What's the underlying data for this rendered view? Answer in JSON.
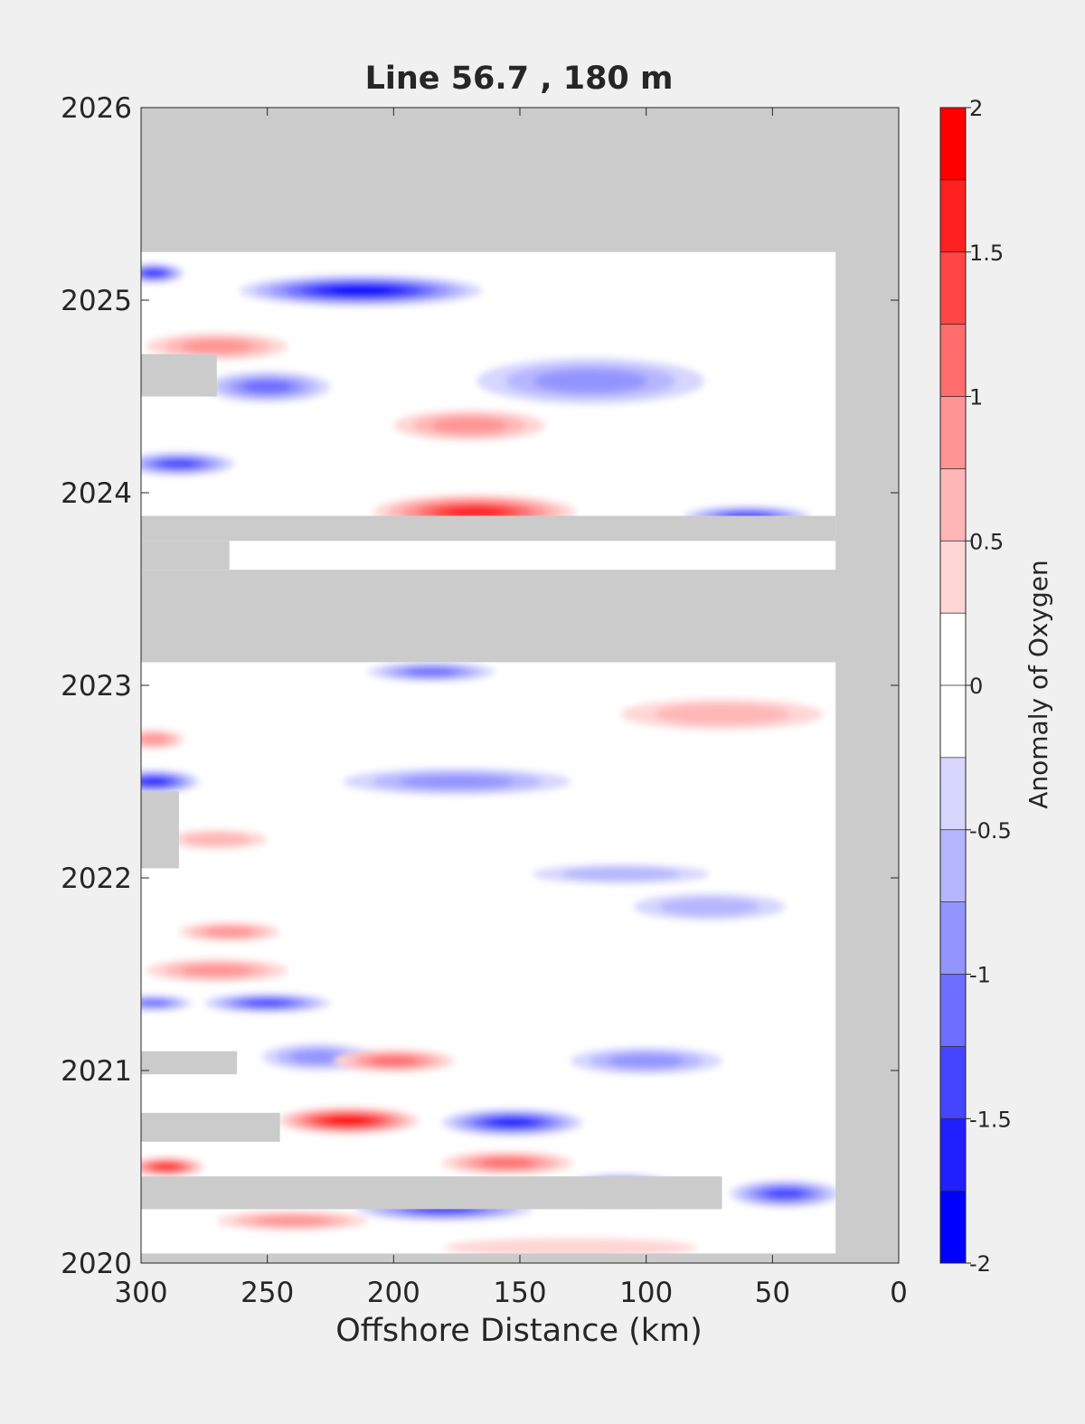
{
  "chart_data": {
    "type": "heatmap",
    "subtype": "filled-contour",
    "title": "Line 56.7 , 180 m",
    "xlabel": "Offshore Distance (km)",
    "ylabel": "",
    "xlim": [
      300,
      0
    ],
    "x_reversed": true,
    "ylim": [
      2020,
      2026
    ],
    "xticks": [
      300,
      250,
      200,
      150,
      100,
      50,
      0
    ],
    "yticks": [
      2020,
      2021,
      2022,
      2023,
      2024,
      2025,
      2026
    ],
    "grid": false,
    "colorbar": {
      "label": "Anomaly of Oxygen",
      "range": [
        -2,
        2
      ],
      "step": 0.25,
      "ticks": [
        -2,
        -1.5,
        -1,
        -0.5,
        0,
        0.5,
        1,
        1.5,
        2
      ],
      "tick_labels": [
        "-2",
        "-1.5",
        "-1",
        "-0.5",
        "0",
        "0.5",
        "1",
        "1.5",
        "2"
      ],
      "colormap": "blue-white-red",
      "colors": [
        "#0000ff",
        "#2020ff",
        "#4545ff",
        "#6d6dff",
        "#9494ff",
        "#b6b6ff",
        "#d6d6ff",
        "#ffffff",
        "#ffffff",
        "#ffd6d6",
        "#ffb6b6",
        "#ff9494",
        "#ff6d6d",
        "#ff4545",
        "#ff2020",
        "#ff0000"
      ]
    },
    "colors": {
      "nodata": "#cbcbcb",
      "figure_bg": "#f0f0f0",
      "axes_bg": "#ffffff"
    },
    "data_extent": {
      "x": [
        300,
        25
      ],
      "y": [
        2020.05,
        2025.25
      ]
    },
    "nodata_regions": [
      {
        "x": [
          300,
          0
        ],
        "y": [
          2025.25,
          2026
        ]
      },
      {
        "x": [
          25,
          0
        ],
        "y": [
          2020,
          2026
        ]
      },
      {
        "x": [
          300,
          0
        ],
        "y": [
          2023.12,
          2023.6
        ]
      },
      {
        "x": [
          300,
          25
        ],
        "y": [
          2023.75,
          2023.88
        ]
      },
      {
        "x": [
          300,
          265
        ],
        "y": [
          2023.6,
          2023.75
        ]
      },
      {
        "x": [
          300,
          270
        ],
        "y": [
          2024.5,
          2024.72
        ]
      },
      {
        "x": [
          300,
          285
        ],
        "y": [
          2022.05,
          2022.45
        ]
      },
      {
        "x": [
          300,
          262
        ],
        "y": [
          2020.98,
          2021.1
        ]
      },
      {
        "x": [
          300,
          245
        ],
        "y": [
          2020.63,
          2020.78
        ]
      },
      {
        "x": [
          300,
          70
        ],
        "y": [
          2020.28,
          2020.45
        ]
      }
    ],
    "anomaly_features": [
      {
        "x": 213,
        "y": 2025.05,
        "rx": 48,
        "ry": 0.08,
        "value": -2
      },
      {
        "x": 295,
        "y": 2025.14,
        "rx": 12,
        "ry": 0.05,
        "value": -1.75
      },
      {
        "x": 270,
        "y": 2024.76,
        "rx": 28,
        "ry": 0.07,
        "value": 1
      },
      {
        "x": 250,
        "y": 2024.55,
        "rx": 25,
        "ry": 0.08,
        "value": -1.25
      },
      {
        "x": 122,
        "y": 2024.58,
        "rx": 45,
        "ry": 0.12,
        "value": -1
      },
      {
        "x": 170,
        "y": 2024.35,
        "rx": 30,
        "ry": 0.08,
        "value": 1
      },
      {
        "x": 285,
        "y": 2024.15,
        "rx": 22,
        "ry": 0.06,
        "value": -1.5
      },
      {
        "x": 168,
        "y": 2023.9,
        "rx": 40,
        "ry": 0.09,
        "value": 1.75
      },
      {
        "x": 60,
        "y": 2023.88,
        "rx": 25,
        "ry": 0.05,
        "value": -1.5
      },
      {
        "x": 185,
        "y": 2023.07,
        "rx": 25,
        "ry": 0.05,
        "value": -1.25
      },
      {
        "x": 70,
        "y": 2022.85,
        "rx": 40,
        "ry": 0.08,
        "value": 0.75
      },
      {
        "x": 295,
        "y": 2022.72,
        "rx": 12,
        "ry": 0.05,
        "value": 1
      },
      {
        "x": 295,
        "y": 2022.5,
        "rx": 18,
        "ry": 0.06,
        "value": -1.75
      },
      {
        "x": 175,
        "y": 2022.5,
        "rx": 45,
        "ry": 0.07,
        "value": -1
      },
      {
        "x": 270,
        "y": 2022.2,
        "rx": 20,
        "ry": 0.05,
        "value": 0.75
      },
      {
        "x": 110,
        "y": 2022.02,
        "rx": 35,
        "ry": 0.05,
        "value": -0.75
      },
      {
        "x": 75,
        "y": 2021.85,
        "rx": 30,
        "ry": 0.07,
        "value": -0.75
      },
      {
        "x": 265,
        "y": 2021.72,
        "rx": 20,
        "ry": 0.05,
        "value": 1
      },
      {
        "x": 270,
        "y": 2021.52,
        "rx": 28,
        "ry": 0.06,
        "value": 1
      },
      {
        "x": 295,
        "y": 2021.35,
        "rx": 15,
        "ry": 0.04,
        "value": -1.25
      },
      {
        "x": 250,
        "y": 2021.35,
        "rx": 25,
        "ry": 0.05,
        "value": -1.5
      },
      {
        "x": 230,
        "y": 2021.07,
        "rx": 22,
        "ry": 0.07,
        "value": -1
      },
      {
        "x": 200,
        "y": 2021.05,
        "rx": 24,
        "ry": 0.06,
        "value": 1.25
      },
      {
        "x": 100,
        "y": 2021.05,
        "rx": 30,
        "ry": 0.07,
        "value": -1
      },
      {
        "x": 218,
        "y": 2020.74,
        "rx": 28,
        "ry": 0.07,
        "value": 2
      },
      {
        "x": 153,
        "y": 2020.73,
        "rx": 28,
        "ry": 0.07,
        "value": -1.75
      },
      {
        "x": 155,
        "y": 2020.52,
        "rx": 26,
        "ry": 0.06,
        "value": 1.25
      },
      {
        "x": 290,
        "y": 2020.5,
        "rx": 15,
        "ry": 0.05,
        "value": 1.75
      },
      {
        "x": 110,
        "y": 2020.38,
        "rx": 24,
        "ry": 0.08,
        "value": -2
      },
      {
        "x": 45,
        "y": 2020.36,
        "rx": 22,
        "ry": 0.07,
        "value": -1.5
      },
      {
        "x": 180,
        "y": 2020.28,
        "rx": 35,
        "ry": 0.06,
        "value": -1.5
      },
      {
        "x": 240,
        "y": 2020.22,
        "rx": 30,
        "ry": 0.05,
        "value": 1
      },
      {
        "x": 130,
        "y": 2020.08,
        "rx": 50,
        "ry": 0.05,
        "value": 0.5
      }
    ]
  }
}
